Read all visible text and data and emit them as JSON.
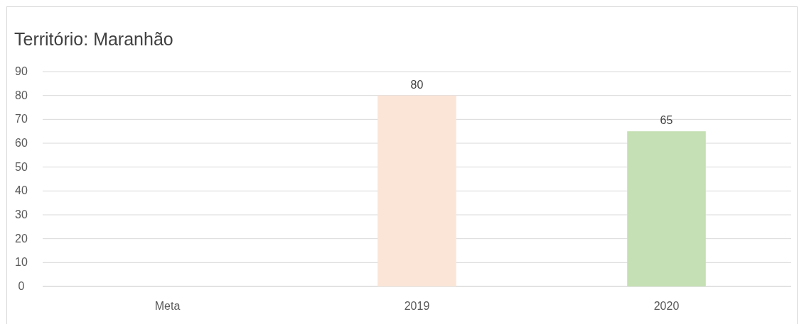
{
  "chart_data": {
    "type": "bar",
    "title": "Território: Maranhão",
    "categories": [
      "Meta",
      "2019",
      "2020"
    ],
    "values": [
      null,
      80,
      65
    ],
    "colors": [
      null,
      "#fbe5d6",
      "#c5e0b4"
    ],
    "ylim": [
      0,
      90
    ],
    "yticks": [
      0,
      10,
      20,
      30,
      40,
      50,
      60,
      70,
      80,
      90
    ],
    "grid": "y",
    "data_labels": true
  }
}
